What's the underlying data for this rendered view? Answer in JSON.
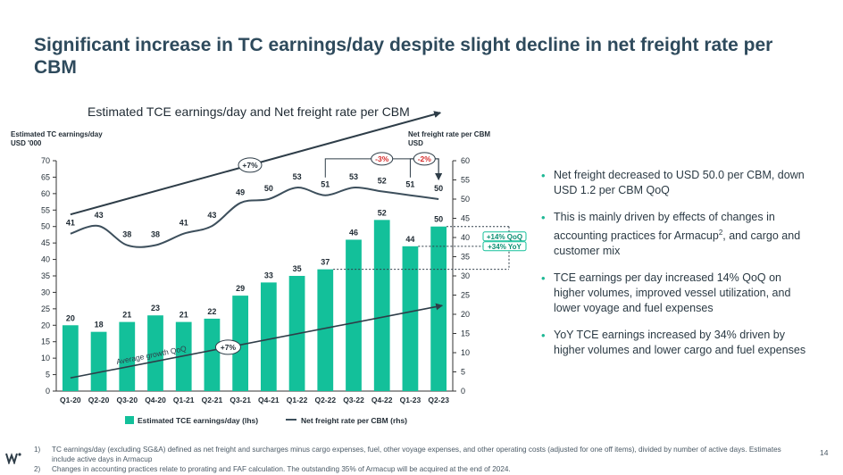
{
  "title": "Significant increase in TC earnings/day despite slight decline in net freight rate per CBM",
  "chart_data": {
    "type": "bar",
    "title": "Estimated TCE earnings/day and Net freight rate per CBM",
    "categories": [
      "Q1-20",
      "Q2-20",
      "Q3-20",
      "Q4-20",
      "Q1-21",
      "Q2-21",
      "Q3-21",
      "Q4-21",
      "Q1-22",
      "Q2-22",
      "Q3-22",
      "Q4-22",
      "Q1-23",
      "Q2-23"
    ],
    "ylabel_left": "Estimated TC earnings/day USD '000",
    "ylabel_right": "Net freight rate per CBM USD",
    "ylim_left": [
      0,
      70
    ],
    "ylim_right": [
      0,
      60
    ],
    "yticks_left": [
      "0",
      "5",
      "10",
      "15",
      "20",
      "25",
      "30",
      "35",
      "40",
      "45",
      "50",
      "55",
      "60",
      "65",
      "70"
    ],
    "yticks_right": [
      "0",
      "5",
      "10",
      "15",
      "20",
      "25",
      "30",
      "35",
      "40",
      "45",
      "50",
      "55",
      "60"
    ],
    "series": [
      {
        "name": "Estimated TCE earnings/day (lhs)",
        "type": "bar",
        "axis": "left",
        "color": "#13c09a",
        "values": [
          20,
          18,
          21,
          23,
          21,
          22,
          29,
          33,
          35,
          37,
          46,
          52,
          44,
          50
        ]
      },
      {
        "name": "Net freight rate per CBM (rhs)",
        "type": "line",
        "axis": "right",
        "color": "#3d4f5c",
        "values": [
          41,
          43,
          38,
          38,
          41,
          43,
          49,
          50,
          53,
          51,
          53,
          52,
          51,
          50
        ]
      }
    ],
    "annotations": {
      "top_growth": "+7%",
      "bottom_growth": "+7%",
      "average_growth": "Average growth QoQ",
      "qoq_freight": "-3%",
      "yoy_freight": "-2%",
      "qoq_tce": "+14% QoQ",
      "yoy_tce": "+34% YoY"
    },
    "legend_position": "bottom",
    "grid": false
  },
  "bullets": [
    "Net freight decreased to USD 50.0 per CBM, down USD 1.2 per CBM QoQ",
    "This is mainly driven by effects of changes in accounting practices for Armacup",
    "TCE earnings per day increased 14% QoQ on higher volumes, improved vessel utilization, and lower voyage and fuel expenses",
    "YoY TCE earnings increased by 34% driven by higher volumes and lower cargo and fuel expenses"
  ],
  "bullet2": {
    "sup": "2",
    "tail": ", and cargo and customer mix"
  },
  "footnotes": [
    {
      "num": "1)",
      "text": "TC earnings/day (excluding SG&A) defined as net freight and surcharges minus cargo expenses, fuel, other voyage expenses, and other operating costs (adjusted for one off items), divided by number of active days. Estimates include active days in Armacup"
    },
    {
      "num": "2)",
      "text": "Changes in accounting practices relate to prorating and FAF calculation. The outstanding 35% of Armacup will be acquired at the end of 2024."
    }
  ],
  "page_number": "14",
  "colors": {
    "bar": "#13c09a",
    "line": "#3d4f5c",
    "title": "#2e4a5c",
    "accent_red": "#d62b2b"
  }
}
